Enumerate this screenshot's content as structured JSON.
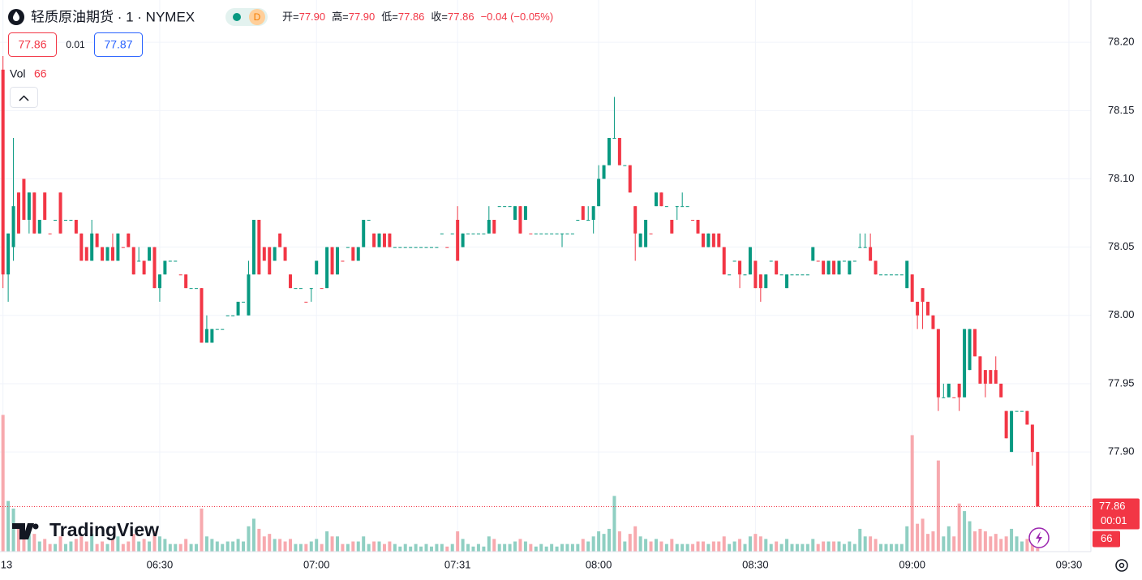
{
  "chart_data": {
    "type": "candlestick",
    "title": "轻质原油期货 · 1 · NYMEX",
    "badge": "D",
    "ohlc_labels": [
      "开=",
      "高=",
      "低=",
      "收="
    ],
    "ohlc_values": [
      "77.90",
      "77.90",
      "77.86",
      "77.86"
    ],
    "change": "−0.04 (−0.05%)",
    "quote": {
      "bid": "77.86",
      "spread": "0.01",
      "ask": "77.87"
    },
    "volume_label": "Vol",
    "countdown": "00:01",
    "watermark": "TradingView",
    "up_color": "#089981",
    "down_color": "#f23645",
    "volume_up_color": "#8fcfc2",
    "volume_down_color": "#f7a9ae",
    "grid": true,
    "ylim": [
      77.827,
      78.231
    ],
    "yticks": [
      {
        "value": 78.2,
        "label": "78.20"
      },
      {
        "value": 78.15,
        "label": "78.15"
      },
      {
        "value": 78.1,
        "label": "78.10"
      },
      {
        "value": 78.05,
        "label": "78.05"
      },
      {
        "value": 78.0,
        "label": "78.00"
      },
      {
        "value": 77.95,
        "label": "77.95"
      },
      {
        "value": 77.9,
        "label": "77.90"
      }
    ],
    "xlim": [
      -0.57,
      208.2
    ],
    "xticks": [
      {
        "value": 0,
        "label": "13"
      },
      {
        "value": 30,
        "label": "06:30"
      },
      {
        "value": 60,
        "label": "07:00"
      },
      {
        "value": 87,
        "label": "07:31"
      },
      {
        "value": 114,
        "label": "08:00"
      },
      {
        "value": 144,
        "label": "08:30"
      },
      {
        "value": 174,
        "label": "09:00"
      },
      {
        "value": 204,
        "label": "09:30"
      }
    ],
    "volume_lim": [
      0,
      2900
    ],
    "candles": [
      [
        78.18,
        78.19,
        78.02,
        78.03,
        2700
      ],
      [
        78.03,
        78.06,
        78.01,
        78.06,
        1000
      ],
      [
        78.05,
        78.13,
        78.04,
        78.08,
        850
      ],
      [
        78.09,
        78.09,
        78.06,
        78.06,
        500
      ],
      [
        78.1,
        78.1,
        78.07,
        78.07,
        300
      ],
      [
        78.07,
        78.09,
        78.06,
        78.09,
        400
      ],
      [
        78.09,
        78.09,
        78.06,
        78.06,
        350
      ],
      [
        78.06,
        78.07,
        78.06,
        78.07,
        200
      ],
      [
        78.09,
        78.09,
        78.07,
        78.07,
        250
      ],
      [
        78.06,
        78.06,
        78.06,
        78.06,
        150
      ],
      [
        78.07,
        78.07,
        78.07,
        78.07,
        150
      ],
      [
        78.09,
        78.09,
        78.06,
        78.06,
        300
      ],
      [
        78.07,
        78.07,
        78.07,
        78.07,
        150
      ],
      [
        78.07,
        78.07,
        78.07,
        78.07,
        200
      ],
      [
        78.07,
        78.07,
        78.06,
        78.06,
        250
      ],
      [
        78.06,
        78.06,
        78.04,
        78.04,
        300
      ],
      [
        78.05,
        78.05,
        78.04,
        78.04,
        200
      ],
      [
        78.04,
        78.07,
        78.04,
        78.06,
        350
      ],
      [
        78.06,
        78.06,
        78.05,
        78.05,
        150
      ],
      [
        78.05,
        78.05,
        78.04,
        78.04,
        200
      ],
      [
        78.04,
        78.05,
        78.04,
        78.05,
        150
      ],
      [
        78.05,
        78.06,
        78.04,
        78.04,
        250
      ],
      [
        78.04,
        78.06,
        78.04,
        78.06,
        300
      ],
      [
        78.05,
        78.05,
        78.05,
        78.05,
        150
      ],
      [
        78.06,
        78.06,
        78.05,
        78.05,
        200
      ],
      [
        78.05,
        78.05,
        78.03,
        78.03,
        350
      ],
      [
        78.04,
        78.05,
        78.04,
        78.04,
        200
      ],
      [
        78.04,
        78.04,
        78.03,
        78.03,
        250
      ],
      [
        78.04,
        78.05,
        78.04,
        78.05,
        200
      ],
      [
        78.05,
        78.05,
        78.02,
        78.02,
        400
      ],
      [
        78.02,
        78.03,
        78.01,
        78.03,
        300
      ],
      [
        78.03,
        78.04,
        78.03,
        78.04,
        250
      ],
      [
        78.04,
        78.04,
        78.04,
        78.04,
        150
      ],
      [
        78.04,
        78.04,
        78.04,
        78.04,
        150
      ],
      [
        78.03,
        78.03,
        78.03,
        78.03,
        150
      ],
      [
        78.03,
        78.03,
        78.02,
        78.02,
        250
      ],
      [
        78.02,
        78.02,
        78.02,
        78.02,
        150
      ],
      [
        78.02,
        78.02,
        78.02,
        78.02,
        150
      ],
      [
        78.02,
        78.02,
        77.98,
        77.98,
        850
      ],
      [
        77.98,
        78.0,
        77.98,
        77.99,
        300
      ],
      [
        77.98,
        77.99,
        77.98,
        77.99,
        250
      ],
      [
        77.99,
        77.99,
        77.99,
        77.99,
        200
      ],
      [
        77.99,
        77.99,
        77.99,
        77.99,
        150
      ],
      [
        78.0,
        78.0,
        78.0,
        78.0,
        200
      ],
      [
        78.0,
        78.0,
        78.0,
        78.0,
        200
      ],
      [
        78.0,
        78.01,
        78.0,
        78.01,
        250
      ],
      [
        78.01,
        78.01,
        78.01,
        78.01,
        200
      ],
      [
        78.0,
        78.04,
        78.0,
        78.03,
        500
      ],
      [
        78.03,
        78.07,
        78.03,
        78.07,
        650
      ],
      [
        78.07,
        78.07,
        78.03,
        78.03,
        450
      ],
      [
        78.05,
        78.05,
        78.04,
        78.04,
        300
      ],
      [
        78.05,
        78.05,
        78.03,
        78.03,
        350
      ],
      [
        78.04,
        78.05,
        78.04,
        78.05,
        250
      ],
      [
        78.06,
        78.06,
        78.05,
        78.05,
        250
      ],
      [
        78.05,
        78.05,
        78.04,
        78.04,
        200
      ],
      [
        78.03,
        78.03,
        78.02,
        78.02,
        250
      ],
      [
        78.02,
        78.02,
        78.02,
        78.02,
        150
      ],
      [
        78.02,
        78.02,
        78.02,
        78.02,
        150
      ],
      [
        78.01,
        78.01,
        78.01,
        78.01,
        150
      ],
      [
        78.02,
        78.02,
        78.01,
        78.02,
        200
      ],
      [
        78.03,
        78.04,
        78.03,
        78.04,
        250
      ],
      [
        78.02,
        78.02,
        78.02,
        78.02,
        150
      ],
      [
        78.02,
        78.05,
        78.02,
        78.05,
        400
      ],
      [
        78.05,
        78.05,
        78.03,
        78.03,
        300
      ],
      [
        78.03,
        78.05,
        78.03,
        78.05,
        300
      ],
      [
        78.04,
        78.04,
        78.04,
        78.04,
        150
      ],
      [
        78.05,
        78.05,
        78.05,
        78.05,
        150
      ],
      [
        78.05,
        78.05,
        78.04,
        78.04,
        200
      ],
      [
        78.04,
        78.05,
        78.04,
        78.05,
        200
      ],
      [
        78.05,
        78.07,
        78.05,
        78.07,
        300
      ],
      [
        78.07,
        78.07,
        78.07,
        78.07,
        150
      ],
      [
        78.06,
        78.06,
        78.05,
        78.05,
        200
      ],
      [
        78.05,
        78.06,
        78.05,
        78.06,
        200
      ],
      [
        78.06,
        78.06,
        78.05,
        78.05,
        150
      ],
      [
        78.06,
        78.06,
        78.05,
        78.05,
        200
      ],
      [
        78.05,
        78.05,
        78.05,
        78.05,
        150
      ],
      [
        78.05,
        78.05,
        78.05,
        78.05,
        100
      ],
      [
        78.05,
        78.05,
        78.05,
        78.05,
        150
      ],
      [
        78.05,
        78.05,
        78.05,
        78.05,
        100
      ],
      [
        78.05,
        78.05,
        78.05,
        78.05,
        150
      ],
      [
        78.05,
        78.05,
        78.05,
        78.05,
        100
      ],
      [
        78.05,
        78.05,
        78.05,
        78.05,
        150
      ],
      [
        78.05,
        78.05,
        78.05,
        78.05,
        100
      ],
      [
        78.05,
        78.05,
        78.05,
        78.05,
        150
      ],
      [
        78.06,
        78.06,
        78.06,
        78.06,
        150
      ],
      [
        78.05,
        78.05,
        78.05,
        78.05,
        100
      ],
      [
        78.06,
        78.06,
        78.06,
        78.06,
        150
      ],
      [
        78.07,
        78.08,
        78.04,
        78.04,
        400
      ],
      [
        78.05,
        78.06,
        78.05,
        78.06,
        250
      ],
      [
        78.06,
        78.06,
        78.06,
        78.06,
        150
      ],
      [
        78.06,
        78.06,
        78.06,
        78.06,
        100
      ],
      [
        78.06,
        78.06,
        78.06,
        78.06,
        150
      ],
      [
        78.06,
        78.06,
        78.06,
        78.06,
        100
      ],
      [
        78.06,
        78.08,
        78.06,
        78.07,
        300
      ],
      [
        78.07,
        78.07,
        78.06,
        78.06,
        250
      ],
      [
        78.08,
        78.08,
        78.08,
        78.08,
        150
      ],
      [
        78.08,
        78.08,
        78.08,
        78.08,
        150
      ],
      [
        78.08,
        78.08,
        78.08,
        78.08,
        150
      ],
      [
        78.07,
        78.08,
        78.07,
        78.08,
        200
      ],
      [
        78.08,
        78.08,
        78.06,
        78.06,
        250
      ],
      [
        78.07,
        78.08,
        78.07,
        78.08,
        200
      ],
      [
        78.06,
        78.06,
        78.06,
        78.06,
        150
      ],
      [
        78.06,
        78.06,
        78.06,
        78.06,
        100
      ],
      [
        78.06,
        78.06,
        78.06,
        78.06,
        150
      ],
      [
        78.06,
        78.06,
        78.06,
        78.06,
        100
      ],
      [
        78.06,
        78.06,
        78.06,
        78.06,
        150
      ],
      [
        78.06,
        78.06,
        78.06,
        78.06,
        100
      ],
      [
        78.06,
        78.06,
        78.05,
        78.06,
        150
      ],
      [
        78.06,
        78.06,
        78.06,
        78.06,
        150
      ],
      [
        78.06,
        78.06,
        78.06,
        78.06,
        150
      ],
      [
        78.07,
        78.07,
        78.07,
        78.07,
        150
      ],
      [
        78.08,
        78.08,
        78.07,
        78.07,
        250
      ],
      [
        78.07,
        78.08,
        78.07,
        78.07,
        200
      ],
      [
        78.07,
        78.08,
        78.06,
        78.08,
        300
      ],
      [
        78.08,
        78.11,
        78.08,
        78.1,
        400
      ],
      [
        78.1,
        78.11,
        78.1,
        78.11,
        350
      ],
      [
        78.11,
        78.13,
        78.11,
        78.13,
        450
      ],
      [
        78.13,
        78.16,
        78.13,
        78.13,
        1100
      ],
      [
        78.13,
        78.13,
        78.11,
        78.11,
        400
      ],
      [
        78.11,
        78.11,
        78.11,
        78.11,
        200
      ],
      [
        78.11,
        78.11,
        78.09,
        78.09,
        350
      ],
      [
        78.08,
        78.08,
        78.04,
        78.06,
        500
      ],
      [
        78.05,
        78.06,
        78.05,
        78.06,
        300
      ],
      [
        78.05,
        78.07,
        78.05,
        78.07,
        250
      ],
      [
        78.06,
        78.06,
        78.06,
        78.06,
        200
      ],
      [
        78.08,
        78.09,
        78.08,
        78.09,
        250
      ],
      [
        78.09,
        78.09,
        78.08,
        78.08,
        200
      ],
      [
        78.08,
        78.08,
        78.08,
        78.08,
        150
      ],
      [
        78.07,
        78.07,
        78.06,
        78.06,
        250
      ],
      [
        78.08,
        78.08,
        78.07,
        78.08,
        150
      ],
      [
        78.08,
        78.09,
        78.08,
        78.08,
        150
      ],
      [
        78.08,
        78.08,
        78.08,
        78.08,
        150
      ],
      [
        78.07,
        78.07,
        78.07,
        78.07,
        150
      ],
      [
        78.07,
        78.07,
        78.06,
        78.06,
        200
      ],
      [
        78.06,
        78.06,
        78.05,
        78.05,
        200
      ],
      [
        78.05,
        78.06,
        78.05,
        78.06,
        150
      ],
      [
        78.06,
        78.06,
        78.05,
        78.05,
        200
      ],
      [
        78.06,
        78.06,
        78.05,
        78.05,
        200
      ],
      [
        78.05,
        78.05,
        78.03,
        78.03,
        300
      ],
      [
        78.03,
        78.03,
        78.03,
        78.03,
        150
      ],
      [
        78.04,
        78.04,
        78.04,
        78.04,
        200
      ],
      [
        78.04,
        78.04,
        78.02,
        78.03,
        250
      ],
      [
        78.03,
        78.03,
        78.03,
        78.03,
        150
      ],
      [
        78.03,
        78.05,
        78.03,
        78.05,
        300
      ],
      [
        78.04,
        78.04,
        78.02,
        78.02,
        350
      ],
      [
        78.03,
        78.03,
        78.01,
        78.02,
        300
      ],
      [
        78.02,
        78.03,
        78.02,
        78.03,
        250
      ],
      [
        78.04,
        78.04,
        78.04,
        78.04,
        150
      ],
      [
        78.04,
        78.04,
        78.03,
        78.03,
        200
      ],
      [
        78.03,
        78.03,
        78.03,
        78.03,
        150
      ],
      [
        78.02,
        78.03,
        78.02,
        78.03,
        250
      ],
      [
        78.03,
        78.03,
        78.03,
        78.03,
        150
      ],
      [
        78.03,
        78.03,
        78.03,
        78.03,
        150
      ],
      [
        78.03,
        78.03,
        78.03,
        78.03,
        150
      ],
      [
        78.03,
        78.03,
        78.03,
        78.03,
        150
      ],
      [
        78.04,
        78.05,
        78.04,
        78.05,
        250
      ],
      [
        78.04,
        78.04,
        78.04,
        78.04,
        150
      ],
      [
        78.04,
        78.04,
        78.03,
        78.03,
        200
      ],
      [
        78.03,
        78.04,
        78.03,
        78.04,
        200
      ],
      [
        78.04,
        78.04,
        78.03,
        78.03,
        200
      ],
      [
        78.03,
        78.04,
        78.03,
        78.04,
        200
      ],
      [
        78.04,
        78.04,
        78.04,
        78.04,
        150
      ],
      [
        78.03,
        78.04,
        78.03,
        78.04,
        200
      ],
      [
        78.04,
        78.04,
        78.04,
        78.04,
        150
      ],
      [
        78.05,
        78.06,
        78.05,
        78.05,
        450
      ],
      [
        78.05,
        78.06,
        78.05,
        78.05,
        300
      ],
      [
        78.05,
        78.06,
        78.04,
        78.04,
        300
      ],
      [
        78.04,
        78.04,
        78.03,
        78.03,
        250
      ],
      [
        78.03,
        78.03,
        78.03,
        78.03,
        150
      ],
      [
        78.03,
        78.03,
        78.03,
        78.03,
        150
      ],
      [
        78.03,
        78.03,
        78.03,
        78.03,
        150
      ],
      [
        78.03,
        78.03,
        78.03,
        78.03,
        150
      ],
      [
        78.03,
        78.03,
        78.03,
        78.03,
        150
      ],
      [
        78.02,
        78.04,
        78.02,
        78.04,
        500
      ],
      [
        78.03,
        78.03,
        78.01,
        78.01,
        2300
      ],
      [
        78.01,
        78.01,
        77.99,
        78.0,
        550
      ],
      [
        78.02,
        78.02,
        77.99,
        78.01,
        650
      ],
      [
        78.01,
        78.01,
        78.0,
        78.0,
        350
      ],
      [
        78.0,
        78.0,
        77.99,
        77.99,
        400
      ],
      [
        77.99,
        77.99,
        77.93,
        77.94,
        1800
      ],
      [
        77.94,
        77.95,
        77.94,
        77.94,
        300
      ],
      [
        77.94,
        77.95,
        77.94,
        77.95,
        500
      ],
      [
        77.94,
        77.94,
        77.94,
        77.94,
        300
      ],
      [
        77.95,
        77.95,
        77.93,
        77.94,
        950
      ],
      [
        77.94,
        77.99,
        77.94,
        77.99,
        800
      ],
      [
        77.96,
        77.99,
        77.96,
        77.99,
        600
      ],
      [
        77.99,
        77.99,
        77.97,
        77.97,
        400
      ],
      [
        77.97,
        77.97,
        77.95,
        77.95,
        450
      ],
      [
        77.96,
        77.96,
        77.94,
        77.95,
        400
      ],
      [
        77.96,
        77.96,
        77.95,
        77.95,
        300
      ],
      [
        77.96,
        77.97,
        77.95,
        77.95,
        350
      ],
      [
        77.95,
        77.95,
        77.94,
        77.94,
        250
      ],
      [
        77.93,
        77.93,
        77.91,
        77.91,
        300
      ],
      [
        77.9,
        77.93,
        77.9,
        77.93,
        450
      ],
      [
        77.93,
        77.93,
        77.93,
        77.93,
        300
      ],
      [
        77.93,
        77.93,
        77.93,
        77.93,
        200
      ],
      [
        77.93,
        77.93,
        77.92,
        77.92,
        250
      ],
      [
        77.92,
        77.92,
        77.89,
        77.9,
        200
      ],
      [
        77.9,
        77.9,
        77.86,
        77.86,
        66
      ]
    ]
  }
}
